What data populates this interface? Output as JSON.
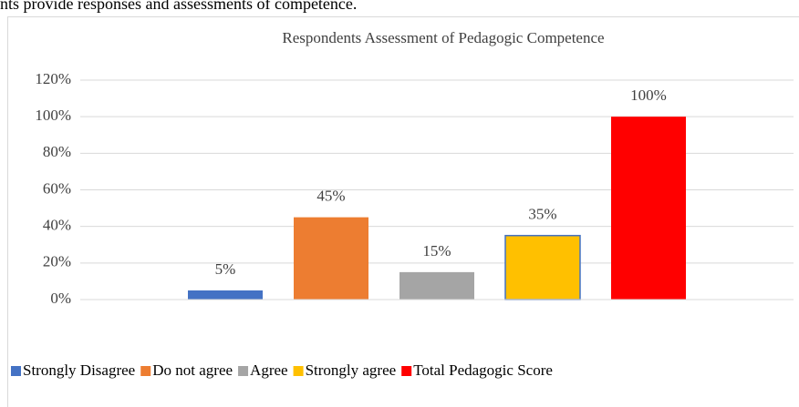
{
  "caption": "nts provide responses and assessments of competence.",
  "chart_data": {
    "type": "bar",
    "title": "Respondents Assessment of Pedagogic Competence",
    "categories": [
      null
    ],
    "series": [
      {
        "name": "Strongly Disagree",
        "color": "#4472c4",
        "values": [
          5
        ],
        "value_labels": [
          "5%"
        ]
      },
      {
        "name": "Do not agree",
        "color": "#ed7d31",
        "values": [
          45
        ],
        "value_labels": [
          "45%"
        ]
      },
      {
        "name": "Agree",
        "color": "#a5a5a5",
        "values": [
          15
        ],
        "value_labels": [
          "15%"
        ]
      },
      {
        "name": "Strongly agree",
        "color": "#ffc000",
        "edgecolor": "#4472c4",
        "values": [
          35
        ],
        "value_labels": [
          "35%"
        ]
      },
      {
        "name": "Total Pedagogic Score",
        "color": "#ff0000",
        "values": [
          100
        ],
        "value_labels": [
          "100%"
        ]
      }
    ],
    "ylim": [
      0,
      120
    ],
    "yticks": [
      {
        "value": 0,
        "label": "0%"
      },
      {
        "value": 20,
        "label": "20%"
      },
      {
        "value": 40,
        "label": "40%"
      },
      {
        "value": 60,
        "label": "60%"
      },
      {
        "value": 80,
        "label": "80%"
      },
      {
        "value": 100,
        "label": "100%"
      },
      {
        "value": 120,
        "label": "120%"
      }
    ],
    "grid": true,
    "legend": "bottom"
  }
}
